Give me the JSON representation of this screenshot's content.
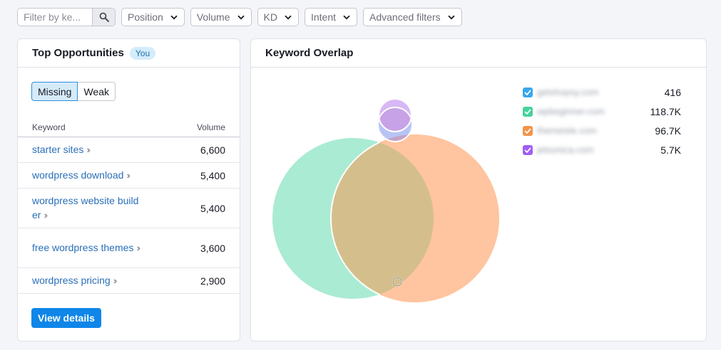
{
  "filters": {
    "search_placeholder": "Filter by ke...",
    "dropdowns": [
      "Position",
      "Volume",
      "KD",
      "Intent",
      "Advanced filters"
    ]
  },
  "top_opportunities": {
    "title": "Top Opportunities",
    "badge": "You",
    "tabs": [
      "Missing",
      "Weak"
    ],
    "active_tab": "Missing",
    "columns": [
      "Keyword",
      "Volume"
    ],
    "rows": [
      {
        "keyword": "starter sites",
        "volume": "6,600"
      },
      {
        "keyword": "wordpress download",
        "volume": "5,400"
      },
      {
        "keyword": "wordpress website builder",
        "volume": "5,400"
      },
      {
        "keyword": "free wordpress themes",
        "volume": "3,600"
      },
      {
        "keyword": "wordpress pricing",
        "volume": "2,900"
      }
    ],
    "view_details": "View details"
  },
  "keyword_overlap": {
    "title": "Keyword Overlap",
    "legend": [
      {
        "domain": "getshopsy.com",
        "count": "416",
        "color": "#3ba7ec"
      },
      {
        "domain": "wpbeginner.com",
        "count": "118.7K",
        "color": "#45d39c"
      },
      {
        "domain": "themeisle.com",
        "count": "96.7K",
        "color": "#f39349"
      },
      {
        "domain": "jetsonica.com",
        "count": "5.7K",
        "color": "#a15df5"
      }
    ],
    "colors": {
      "green": "#aaebd3",
      "orange": "#ffc4a0",
      "overlap": "#d4bf8c",
      "purple": "#d7b8f5",
      "blue": "#b7c4f5"
    }
  }
}
